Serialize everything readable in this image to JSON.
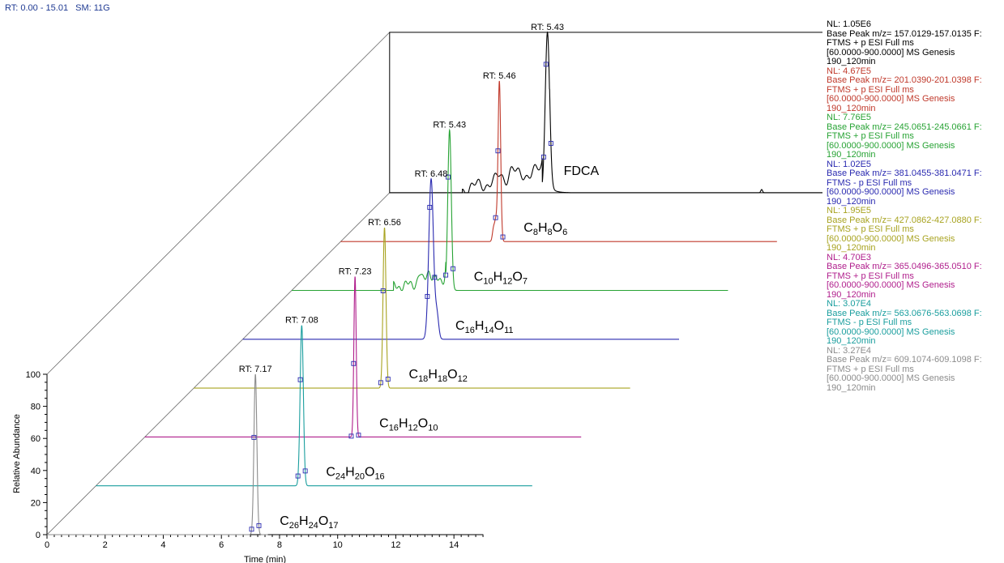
{
  "header": {
    "rt_range": "RT: 0.00 - 15.01",
    "sm": "SM: 11G"
  },
  "chart_data": {
    "type": "line",
    "xlabel": "Time (min)",
    "ylabel": "Relative Abundance",
    "xlim": [
      0,
      15.01
    ],
    "ylim": [
      0,
      100
    ],
    "x_ticks": [
      0,
      2,
      4,
      6,
      8,
      10,
      12,
      14
    ],
    "y_ticks": [
      0,
      20,
      40,
      60,
      80,
      100
    ],
    "layout": "stacked-3d-offset",
    "series": [
      {
        "label": "FDCA",
        "rt_label": "RT: 5.43",
        "peak_rt": 5.43,
        "color": "#000000",
        "nl": "NL: 1.05E6",
        "desc": "Base Peak m/z= 157.0129-157.0135 F:\nFTMS + p ESI Full ms\n[60.0000-900.0000]  MS  Genesis\n190_120min"
      },
      {
        "label": "C8H8O6",
        "rt_label": "RT: 5.46",
        "peak_rt": 5.46,
        "color": "#c0392b",
        "nl": "NL: 4.67E5",
        "desc": "Base Peak m/z= 201.0390-201.0398 F:\nFTMS + p ESI Full ms\n[60.0000-900.0000]  MS  Genesis\n190_120min"
      },
      {
        "label": "C10H12O7",
        "rt_label": "RT: 5.43",
        "peak_rt": 5.43,
        "color": "#27a334",
        "nl": "NL: 7.76E5",
        "desc": "Base Peak m/z= 245.0651-245.0661 F:\nFTMS + p ESI Full ms\n[60.0000-900.0000]  MS  Genesis\n190_120min"
      },
      {
        "label": "C16H14O11",
        "rt_label": "RT: 6.48",
        "peak_rt": 6.48,
        "color": "#2a2ab0",
        "nl": "NL: 1.02E5",
        "desc": "Base Peak m/z= 381.0455-381.0471 F:\nFTMS - p ESI Full ms\n[60.0000-900.0000]  MS  Genesis\n190_120min"
      },
      {
        "label": "C18H18O12",
        "rt_label": "RT: 6.56",
        "peak_rt": 6.56,
        "color": "#a8a320",
        "nl": "NL: 1.95E5",
        "desc": "Base Peak m/z= 427.0862-427.0880 F:\nFTMS + p ESI Full ms\n[60.0000-900.0000]  MS  Genesis\n190_120min"
      },
      {
        "label": "C16H12O10",
        "rt_label": "RT: 7.23",
        "peak_rt": 7.23,
        "color": "#b01e8c",
        "nl": "NL: 4.70E3",
        "desc": "Base Peak m/z= 365.0496-365.0510 F:\nFTMS + p ESI Full ms\n[60.0000-900.0000]  MS  Genesis\n190_120min"
      },
      {
        "label": "C24H20O16",
        "rt_label": "RT: 7.08",
        "peak_rt": 7.08,
        "color": "#1a9e9e",
        "nl": "NL: 3.07E4",
        "desc": "Base Peak m/z= 563.0676-563.0698 F:\nFTMS - p ESI Full ms\n[60.0000-900.0000]  MS  Genesis\n190_120min"
      },
      {
        "label": "C26H24O17",
        "rt_label": "RT: 7.17",
        "peak_rt": 7.17,
        "color": "#8c8c8c",
        "nl": "NL: 3.27E4",
        "desc": "Base Peak m/z= 609.1074-609.1098 F:\nFTMS + p ESI Full ms\n[60.0000-900.0000]  MS  Genesis\n190_120min"
      }
    ]
  }
}
